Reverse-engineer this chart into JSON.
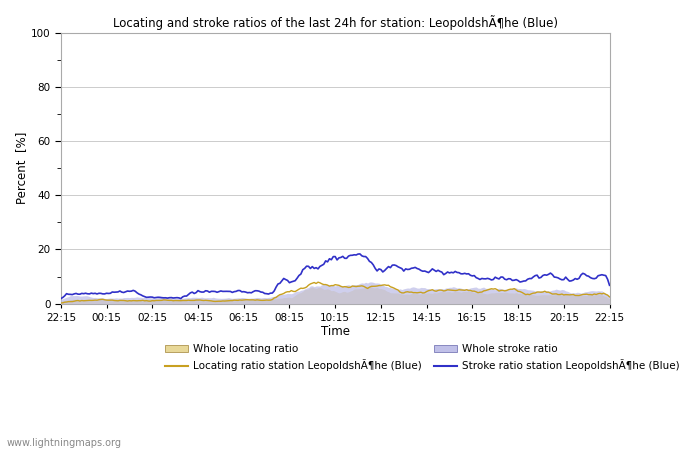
{
  "title": "Locating and stroke ratios of the last 24h for station: LeopoldshÃ¶he (Blue)",
  "xlabel": "Time",
  "ylabel": "Percent  [%]",
  "ylim": [
    0,
    100
  ],
  "yticks": [
    0,
    20,
    40,
    60,
    80,
    100
  ],
  "xtick_labels": [
    "22:15",
    "00:15",
    "02:15",
    "04:15",
    "06:15",
    "08:15",
    "10:15",
    "12:15",
    "14:15",
    "16:15",
    "18:15",
    "20:15",
    "22:15"
  ],
  "background_color": "#ffffff",
  "plot_bg_color": "#ffffff",
  "watermark": "www.lightningmaps.org",
  "whole_loc_color": "#e8d898",
  "loc_station_color": "#c8a020",
  "whole_stroke_color": "#c0c0e8",
  "stroke_station_color": "#3030c8",
  "legend": [
    {
      "label": "Whole locating ratio"
    },
    {
      "label": "Locating ratio station LeopoldshÃ¶he (Blue)"
    },
    {
      "label": "Whole stroke ratio"
    },
    {
      "label": "Stroke ratio station LeopoldshÃ¶he (Blue)"
    }
  ]
}
